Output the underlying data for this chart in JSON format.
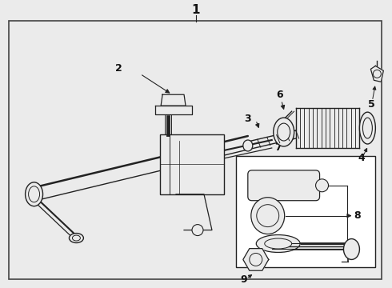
{
  "background": "#ebebeb",
  "border_color": "#444444",
  "line_color": "#222222",
  "label_color": "#111111",
  "fig_width": 4.9,
  "fig_height": 3.6,
  "dpi": 100
}
